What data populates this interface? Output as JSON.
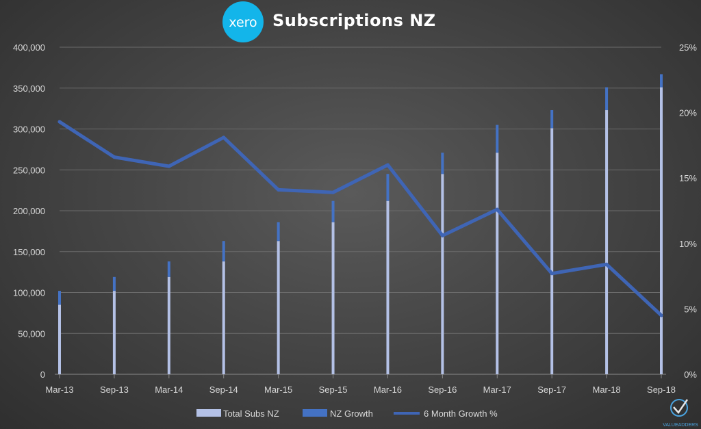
{
  "header": {
    "logo_text": "xero",
    "title": "Subscriptions NZ"
  },
  "watermark": {
    "text": "VALUEADDERS"
  },
  "colors": {
    "total_subs": "#b4c1e6",
    "nz_growth": "#4472c4",
    "growth_line": "#3f65b5",
    "logo_bg": "#13b5ea",
    "grid": "#6b6b6b",
    "text": "#d9d9d9"
  },
  "chart_data": {
    "type": "bar",
    "title": "Subscriptions NZ",
    "categories": [
      "Mar-13",
      "Sep-13",
      "Mar-14",
      "Sep-14",
      "Mar-15",
      "Sep-15",
      "Mar-16",
      "Sep-16",
      "Mar-17",
      "Sep-17",
      "Mar-18",
      "Sep-18"
    ],
    "series": [
      {
        "name": "Total Subs NZ",
        "kind": "stacked-bar",
        "axis": "left",
        "values": [
          85000,
          102000,
          119000,
          138000,
          163000,
          186000,
          212000,
          245000,
          271000,
          301000,
          323000,
          351000
        ]
      },
      {
        "name": "NZ Growth",
        "kind": "stacked-bar",
        "axis": "left",
        "values": [
          17000,
          17000,
          19000,
          25000,
          23000,
          26000,
          33000,
          26000,
          34000,
          22000,
          28000,
          16000
        ]
      },
      {
        "name": "6 Month Growth %",
        "kind": "line",
        "axis": "right",
        "values": [
          19.3,
          16.6,
          15.9,
          18.1,
          14.1,
          13.9,
          16.0,
          10.6,
          12.6,
          7.7,
          8.4,
          4.5
        ]
      }
    ],
    "y_left": {
      "min": 0,
      "max": 400000,
      "ticks": [
        "0",
        "50,000",
        "100,000",
        "150,000",
        "200,000",
        "250,000",
        "300,000",
        "350,000",
        "400,000"
      ]
    },
    "y_right": {
      "min": 0,
      "max": 25,
      "ticks": [
        "0%",
        "5%",
        "10%",
        "15%",
        "20%",
        "25%"
      ]
    },
    "grid": true,
    "legend": {
      "position": "bottom",
      "items": [
        "Total Subs NZ",
        "NZ Growth",
        "6 Month Growth %"
      ]
    }
  }
}
